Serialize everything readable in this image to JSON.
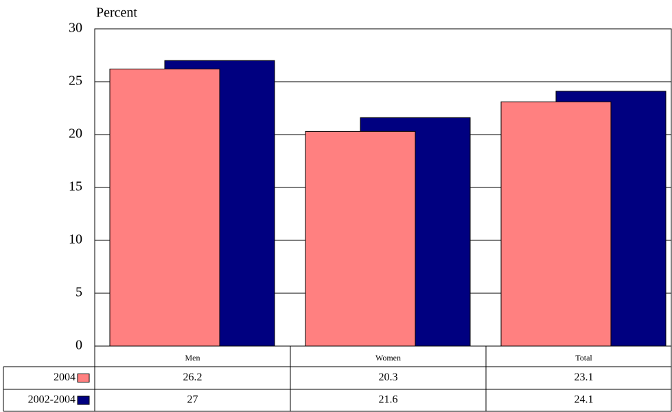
{
  "chart_data": {
    "type": "bar",
    "y_label": "Percent",
    "categories": [
      "Men",
      "Women",
      "Total"
    ],
    "series": [
      {
        "name": "2004",
        "color": "#ff8080",
        "values": [
          26.2,
          20.3,
          23.1
        ]
      },
      {
        "name": "2002-2004",
        "color": "#000080",
        "values": [
          27,
          21.6,
          24.1
        ]
      }
    ],
    "ylim": [
      0,
      30
    ],
    "yticks": [
      0,
      5,
      10,
      15,
      20,
      25,
      30
    ],
    "grid": true
  }
}
